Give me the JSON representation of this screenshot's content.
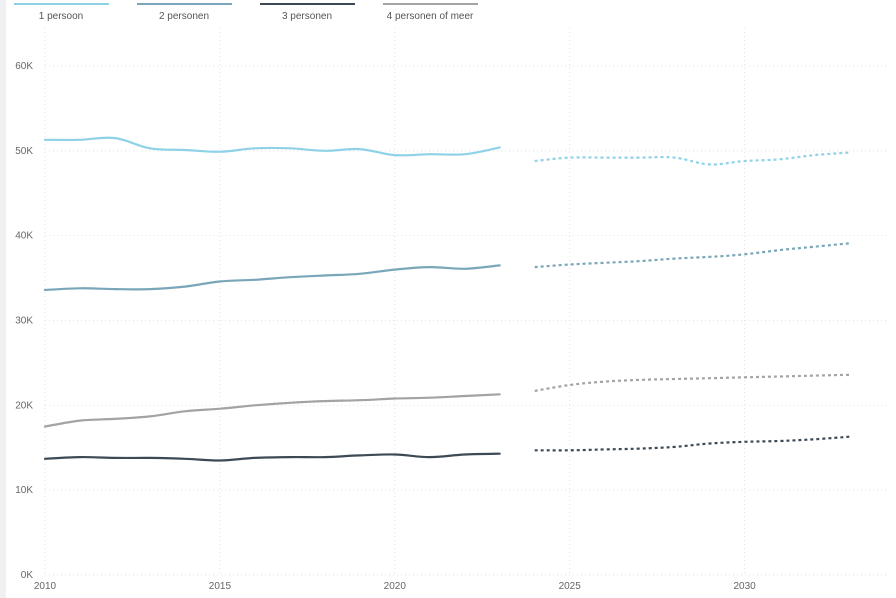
{
  "chart_data": {
    "type": "line",
    "title": "",
    "xlabel": "",
    "ylabel": "",
    "ylim": [
      0,
      60000
    ],
    "xlim": [
      2010,
      2033
    ],
    "y_ticks": [
      {
        "value": 0,
        "label": "0K"
      },
      {
        "value": 10000,
        "label": "10K"
      },
      {
        "value": 20000,
        "label": "20K"
      },
      {
        "value": 30000,
        "label": "30K"
      },
      {
        "value": 40000,
        "label": "40K"
      },
      {
        "value": 50000,
        "label": "50K"
      },
      {
        "value": 60000,
        "label": "60K"
      }
    ],
    "x_ticks": [
      {
        "value": 2010,
        "label": "2010"
      },
      {
        "value": 2015,
        "label": "2015"
      },
      {
        "value": 2020,
        "label": "2020"
      },
      {
        "value": 2025,
        "label": "2025"
      },
      {
        "value": 2030,
        "label": "2030"
      }
    ],
    "grid": true,
    "legend_position": "top-left",
    "series": [
      {
        "name": "1 persoon",
        "color": "#8fd2e8",
        "actual": {
          "x": [
            2010,
            2011,
            2012,
            2013,
            2014,
            2015,
            2016,
            2017,
            2018,
            2019,
            2020,
            2021,
            2022,
            2023
          ],
          "y": [
            51300,
            51300,
            51500,
            50300,
            50100,
            49900,
            50300,
            50300,
            50000,
            50200,
            49500,
            49600,
            49600,
            50400
          ]
        },
        "forecast": {
          "x": [
            2024,
            2025,
            2026,
            2027,
            2028,
            2029,
            2030,
            2031,
            2032,
            2033
          ],
          "y": [
            48800,
            49200,
            49200,
            49200,
            49200,
            48400,
            48800,
            49000,
            49500,
            49800
          ]
        }
      },
      {
        "name": "2 personen",
        "color": "#79a6b9",
        "actual": {
          "x": [
            2010,
            2011,
            2012,
            2013,
            2014,
            2015,
            2016,
            2017,
            2018,
            2019,
            2020,
            2021,
            2022,
            2023
          ],
          "y": [
            33600,
            33800,
            33700,
            33700,
            34000,
            34600,
            34800,
            35100,
            35300,
            35500,
            36000,
            36300,
            36100,
            36500
          ]
        },
        "forecast": {
          "x": [
            2024,
            2025,
            2026,
            2027,
            2028,
            2029,
            2030,
            2031,
            2032,
            2033
          ],
          "y": [
            36300,
            36600,
            36800,
            37000,
            37300,
            37500,
            37800,
            38300,
            38700,
            39100
          ]
        }
      },
      {
        "name": "3 personen",
        "color": "#3d4a56",
        "actual": {
          "x": [
            2010,
            2011,
            2012,
            2013,
            2014,
            2015,
            2016,
            2017,
            2018,
            2019,
            2020,
            2021,
            2022,
            2023
          ],
          "y": [
            13700,
            13900,
            13800,
            13800,
            13700,
            13500,
            13800,
            13900,
            13900,
            14100,
            14200,
            13900,
            14200,
            14300
          ]
        },
        "forecast": {
          "x": [
            2024,
            2025,
            2026,
            2027,
            2028,
            2029,
            2030,
            2031,
            2032,
            2033
          ],
          "y": [
            14700,
            14700,
            14800,
            14900,
            15100,
            15500,
            15700,
            15800,
            16000,
            16300
          ]
        }
      },
      {
        "name": "4 personen of meer",
        "color": "#a3a3a3",
        "actual": {
          "x": [
            2010,
            2011,
            2012,
            2013,
            2014,
            2015,
            2016,
            2017,
            2018,
            2019,
            2020,
            2021,
            2022,
            2023
          ],
          "y": [
            17500,
            18200,
            18400,
            18700,
            19300,
            19600,
            20000,
            20300,
            20500,
            20600,
            20800,
            20900,
            21100,
            21300
          ]
        },
        "forecast": {
          "x": [
            2024,
            2025,
            2026,
            2027,
            2028,
            2029,
            2030,
            2031,
            2032,
            2033
          ],
          "y": [
            21700,
            22400,
            22800,
            23000,
            23100,
            23200,
            23300,
            23400,
            23500,
            23600
          ]
        }
      }
    ]
  }
}
